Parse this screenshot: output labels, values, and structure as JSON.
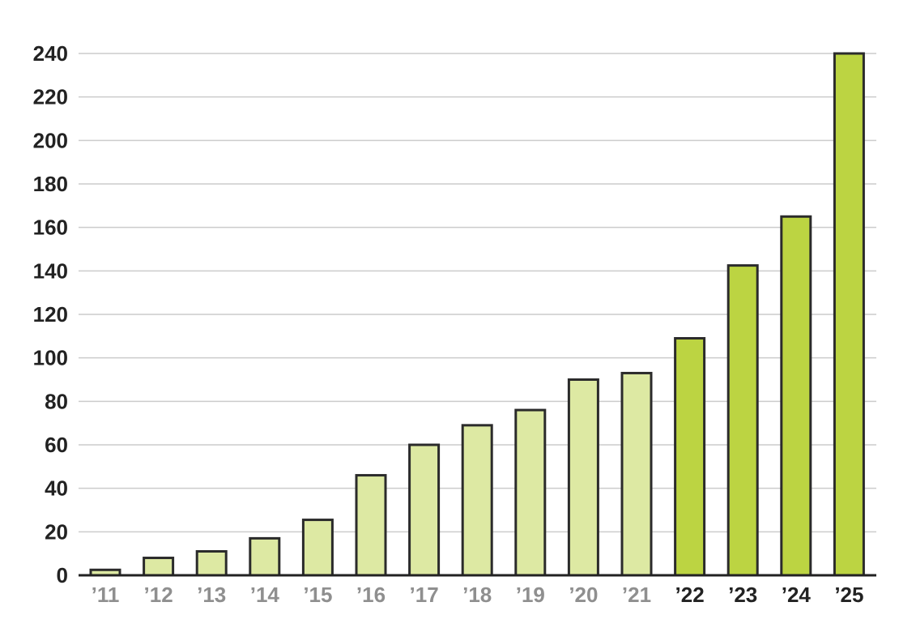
{
  "chart_data": {
    "type": "bar",
    "title": "",
    "xlabel": "",
    "ylabel": "",
    "categories": [
      "’11",
      "’12",
      "’13",
      "’14",
      "’15",
      "’16",
      "’17",
      "’18",
      "’19",
      "’20",
      "’21",
      "’22",
      "’23",
      "’24",
      "’25"
    ],
    "values": [
      2.5,
      8,
      11,
      17,
      25.5,
      46,
      60,
      69,
      76,
      90,
      93,
      109,
      142.5,
      165,
      240
    ],
    "ylim": [
      0,
      240
    ],
    "yticks": [
      0,
      20,
      40,
      60,
      80,
      100,
      120,
      140,
      160,
      180,
      200,
      220,
      240
    ],
    "grid": true,
    "highlight_from_index": 11,
    "colors": {
      "bar_light": "#dde9a3",
      "bar_highlight": "#bcd442",
      "bar_stroke": "#2b2b2b",
      "grid": "#cccccc",
      "axis": "#222222",
      "label_muted": "#8f8f8f",
      "label_strong": "#222222"
    }
  }
}
